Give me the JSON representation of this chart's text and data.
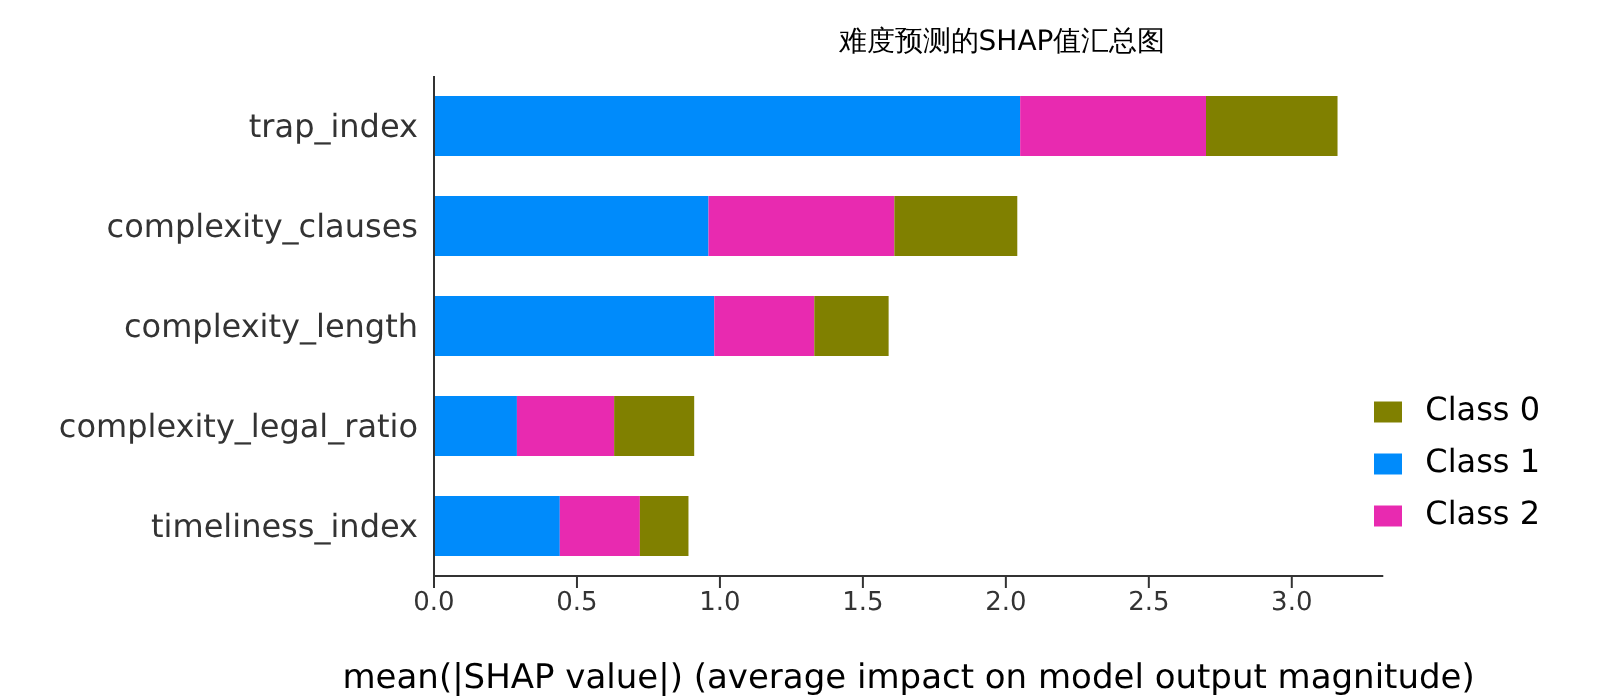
{
  "chart_data": {
    "type": "bar",
    "orientation": "horizontal",
    "stacked": true,
    "title": "难度预测的SHAP值汇总图",
    "xlabel": "mean(|SHAP value|) (average impact on model output magnitude)",
    "categories": [
      "trap_index",
      "complexity_clauses",
      "complexity_length",
      "complexity_legal_ratio",
      "timeliness_index"
    ],
    "series": [
      {
        "name": "Class 1",
        "color": "#008bfb",
        "values": [
          2.05,
          0.96,
          0.98,
          0.29,
          0.44
        ]
      },
      {
        "name": "Class 2",
        "color": "#e82ab0",
        "values": [
          0.65,
          0.65,
          0.35,
          0.34,
          0.28
        ]
      },
      {
        "name": "Class 0",
        "color": "#808000",
        "values": [
          0.46,
          0.43,
          0.26,
          0.28,
          0.17
        ]
      }
    ],
    "xlim": [
      0,
      3.32
    ],
    "xticks": [
      {
        "value": 0,
        "label": "0.0"
      },
      {
        "value": 0.5,
        "label": "0.5"
      },
      {
        "value": 1,
        "label": "1.0"
      },
      {
        "value": 1.5,
        "label": "1.5"
      },
      {
        "value": 2,
        "label": "2.0"
      },
      {
        "value": 2.5,
        "label": "2.5"
      },
      {
        "value": 3,
        "label": "3.0"
      }
    ],
    "grid": false,
    "legend": "bottom right"
  }
}
